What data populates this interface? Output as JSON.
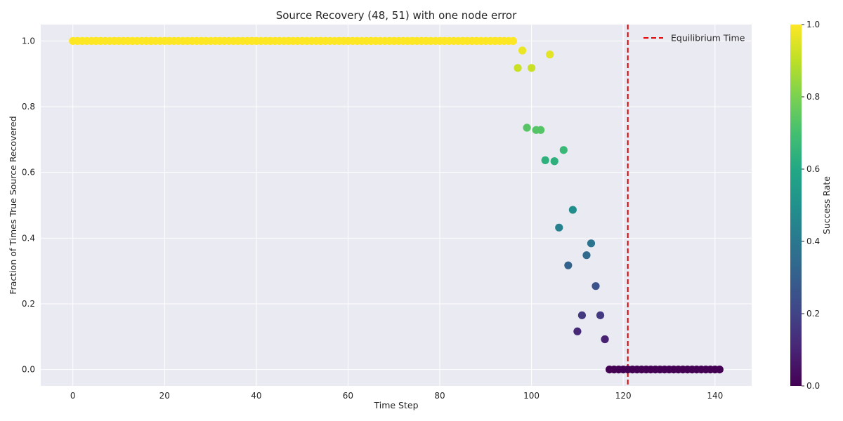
{
  "chart_data": {
    "type": "scatter",
    "title": "Source Recovery (48, 51) with one node error",
    "xlabel": "Time Step",
    "ylabel": "Fraction of Times True Source Recovered",
    "xlim": [
      -7,
      148
    ],
    "ylim": [
      -0.05,
      1.05
    ],
    "xticks": [
      0,
      20,
      40,
      60,
      80,
      100,
      120,
      140
    ],
    "yticks": [
      0.0,
      0.2,
      0.4,
      0.6,
      0.8,
      1.0
    ],
    "xtick_labels": [
      "0",
      "20",
      "40",
      "60",
      "80",
      "100",
      "120",
      "140"
    ],
    "ytick_labels": [
      "0.0",
      "0.2",
      "0.4",
      "0.6",
      "0.8",
      "1.0"
    ],
    "grid": true,
    "background": "#eaeaf2",
    "colormap": "viridis",
    "colorbar": {
      "label": "Success Rate",
      "range": [
        0,
        1
      ],
      "ticks": [
        0.0,
        0.2,
        0.4,
        0.6,
        0.8,
        1.0
      ],
      "tick_labels": [
        "0.0",
        "0.2",
        "0.4",
        "0.6",
        "0.8",
        "1.0"
      ]
    },
    "vline": {
      "x": 121,
      "color": "#e00000",
      "style": "dashed",
      "label": "Equilibrium Time"
    },
    "legend": {
      "position": "top-right",
      "entries": [
        "Equilibrium Time"
      ]
    },
    "points": {
      "x": [
        0,
        1,
        2,
        3,
        4,
        5,
        6,
        7,
        8,
        9,
        10,
        11,
        12,
        13,
        14,
        15,
        16,
        17,
        18,
        19,
        20,
        21,
        22,
        23,
        24,
        25,
        26,
        27,
        28,
        29,
        30,
        31,
        32,
        33,
        34,
        35,
        36,
        37,
        38,
        39,
        40,
        41,
        42,
        43,
        44,
        45,
        46,
        47,
        48,
        49,
        50,
        51,
        52,
        53,
        54,
        55,
        56,
        57,
        58,
        59,
        60,
        61,
        62,
        63,
        64,
        65,
        66,
        67,
        68,
        69,
        70,
        71,
        72,
        73,
        74,
        75,
        76,
        77,
        78,
        79,
        80,
        81,
        82,
        83,
        84,
        85,
        86,
        87,
        88,
        89,
        90,
        91,
        92,
        93,
        94,
        95,
        96,
        97,
        98,
        99,
        100,
        101,
        102,
        103,
        104,
        105,
        106,
        107,
        108,
        109,
        110,
        111,
        112,
        113,
        114,
        115,
        116,
        117,
        118,
        119,
        120,
        121,
        122,
        123,
        124,
        125,
        126,
        127,
        128,
        129,
        130,
        131,
        132,
        133,
        134,
        135,
        136,
        137,
        138,
        139,
        140,
        141
      ],
      "y": [
        1,
        1,
        1,
        1,
        1,
        1,
        1,
        1,
        1,
        1,
        1,
        1,
        1,
        1,
        1,
        1,
        1,
        1,
        1,
        1,
        1,
        1,
        1,
        1,
        1,
        1,
        1,
        1,
        1,
        1,
        1,
        1,
        1,
        1,
        1,
        1,
        1,
        1,
        1,
        1,
        1,
        1,
        1,
        1,
        1,
        1,
        1,
        1,
        1,
        1,
        1,
        1,
        1,
        1,
        1,
        1,
        1,
        1,
        1,
        1,
        1,
        1,
        1,
        1,
        1,
        1,
        1,
        1,
        1,
        1,
        1,
        1,
        1,
        1,
        1,
        1,
        1,
        1,
        1,
        1,
        1,
        1,
        1,
        1,
        1,
        1,
        1,
        1,
        1,
        1,
        1,
        1,
        1,
        1,
        1,
        1,
        1,
        0.918,
        0.971,
        0.736,
        0.918,
        0.729,
        0.729,
        0.637,
        0.959,
        0.634,
        0.432,
        0.668,
        0.317,
        0.486,
        0.116,
        0.165,
        0.348,
        0.384,
        0.254,
        0.165,
        0.092,
        0,
        0,
        0,
        0,
        0,
        0,
        0,
        0,
        0,
        0,
        0,
        0,
        0,
        0,
        0,
        0,
        0,
        0,
        0,
        0,
        0,
        0,
        0,
        0,
        0
      ]
    }
  }
}
